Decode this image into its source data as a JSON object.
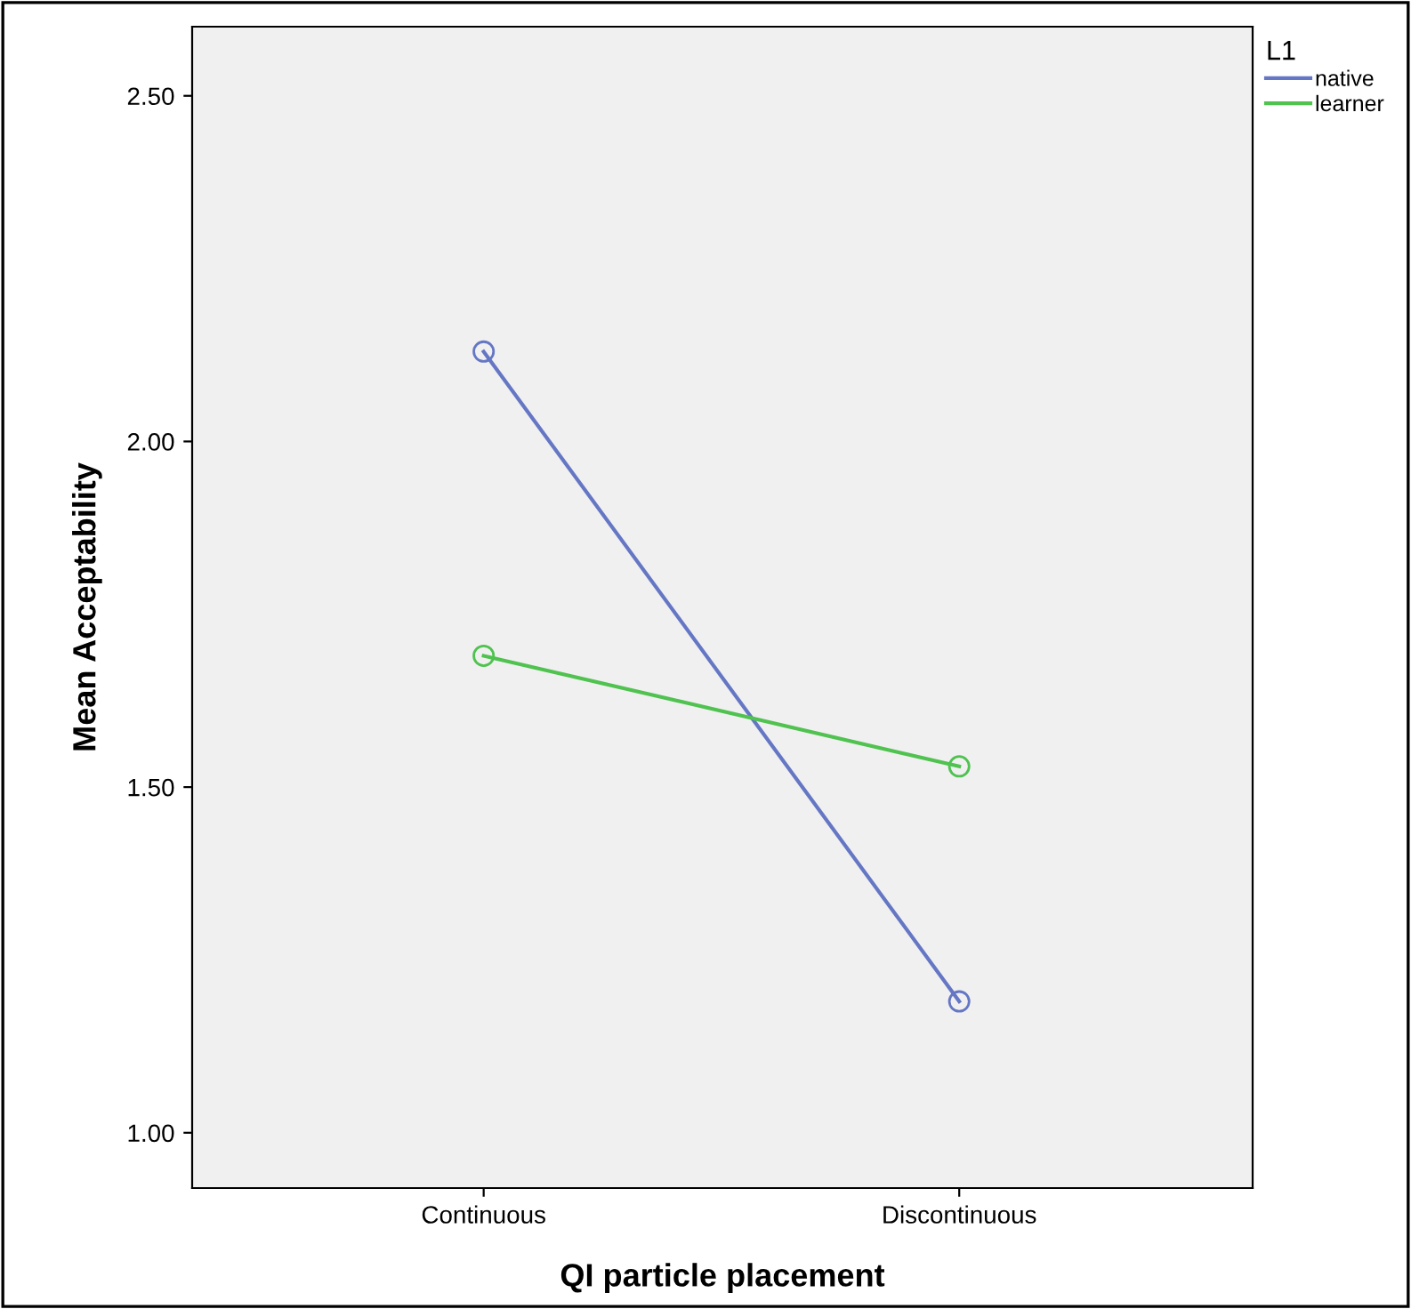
{
  "chart_data": {
    "type": "line",
    "xlabel": "QI particle placement",
    "ylabel": "Mean Acceptability",
    "legend_title": "L1",
    "categories": [
      "Continuous",
      "Discontinuous"
    ],
    "series": [
      {
        "name": "native",
        "color": "#6577c4",
        "values": [
          2.13,
          1.19
        ]
      },
      {
        "name": "learner",
        "color": "#4fc24f",
        "values": [
          1.69,
          1.53
        ]
      }
    ],
    "ylim": [
      0.92,
      2.6
    ],
    "yticks": [
      {
        "value": 1.0,
        "label": "1.00"
      },
      {
        "value": 1.5,
        "label": "1.50"
      },
      {
        "value": 2.0,
        "label": "2.00"
      },
      {
        "value": 2.5,
        "label": "2.50"
      }
    ],
    "marker": "circle",
    "line_style": "solid",
    "grid": false,
    "legend": "top right"
  }
}
